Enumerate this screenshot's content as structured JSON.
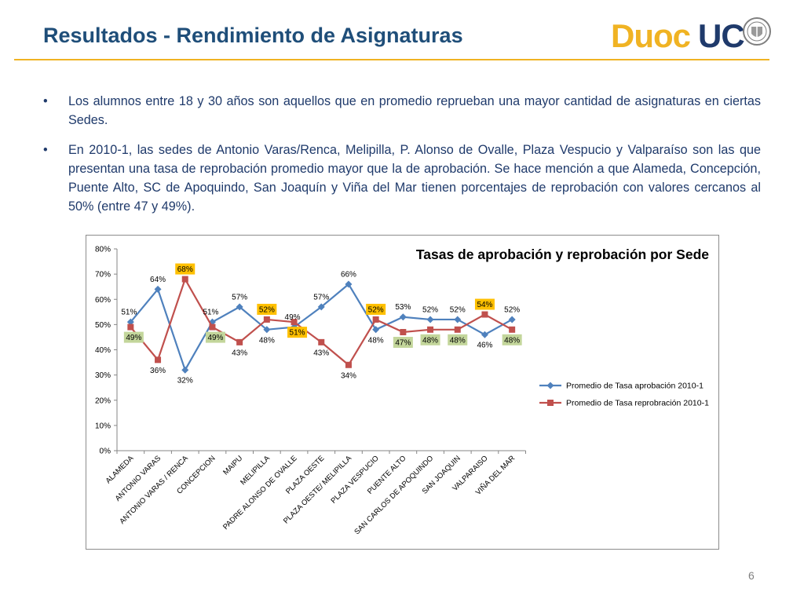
{
  "header": {
    "title": "Resultados - Rendimiento de Asignaturas",
    "logo_left": "Duoc",
    "logo_right": "UC"
  },
  "bullets": [
    {
      "mark": "•",
      "text": "Los alumnos entre 18 y 30 años son aquellos que en promedio reprueban una mayor cantidad de asignaturas en ciertas Sedes."
    },
    {
      "mark": "•",
      "text": "En 2010-1, las sedes de Antonio Varas/Renca, Melipilla, P. Alonso de Ovalle, Plaza Vespucio y Valparaíso son las que presentan una tasa de reprobación promedio mayor que la de aprobación. Se hace mención a que Alameda, Concepción, Puente Alto, SC de Apoquindo, San Joaquín y Viña del Mar tienen porcentajes de reprobación con valores cercanos al 50% (entre 47 y 49%)."
    }
  ],
  "page_number": "6",
  "colors": {
    "title": "#1f4e79",
    "rule": "#f0b323",
    "approval": "#4f81bd",
    "reprobation": "#c0504d",
    "label_green": "#c3d69b",
    "label_orange": "#ffc000"
  },
  "chart_data": {
    "type": "line",
    "title": "Tasas de aprobación y reprobación por Sede",
    "categories": [
      "ALAMEDA",
      "ANTONIO VARAS",
      "ANTONIO VARAS / RENCA",
      "CONCEPCION",
      "MAIPU",
      "MELIPILLA",
      "PADRE ALONSO DE OVALLE",
      "PLAZA OESTE",
      "PLAZA OESTE/ MELIPILLA",
      "PLAZA VESPUCIO",
      "PUENTE ALTO",
      "SAN CARLOS DE APOQUINDO",
      "SAN JOAQUIN",
      "VALPARAISO",
      "VIÑA DEL MAR"
    ],
    "ylim": [
      0,
      80
    ],
    "yticks": [
      "0%",
      "10%",
      "20%",
      "30%",
      "40%",
      "50%",
      "60%",
      "70%",
      "80%"
    ],
    "legend_position": "right",
    "grid": false,
    "series": [
      {
        "name": "Promedio de Tasa aprobación 2010-1",
        "color": "#4f81bd",
        "marker": "diamond",
        "values": [
          51,
          64,
          32,
          51,
          57,
          48,
          49,
          57,
          66,
          48,
          53,
          52,
          52,
          46,
          52
        ],
        "labels": [
          "51%",
          "64%",
          "32%",
          "51%",
          "57%",
          "48%",
          "49%",
          "57%",
          "66%",
          "48%",
          "53%",
          "52%",
          "52%",
          "46%",
          "52%"
        ]
      },
      {
        "name": "Promedio de Tasa reprobración 2010-1",
        "color": "#c0504d",
        "marker": "square",
        "values": [
          49,
          36,
          68,
          49,
          43,
          52,
          51,
          43,
          34,
          52,
          47,
          48,
          48,
          54,
          48
        ],
        "labels": [
          "49%",
          "36%",
          "68%",
          "49%",
          "43%",
          "52%",
          "51%",
          "43%",
          "34%",
          "52%",
          "47%",
          "48%",
          "48%",
          "54%",
          "48%"
        ],
        "label_highlight": [
          "green",
          "none",
          "orange",
          "green",
          "none",
          "orange",
          "orange",
          "none",
          "none",
          "orange",
          "green",
          "green",
          "green",
          "orange",
          "green"
        ]
      }
    ]
  }
}
